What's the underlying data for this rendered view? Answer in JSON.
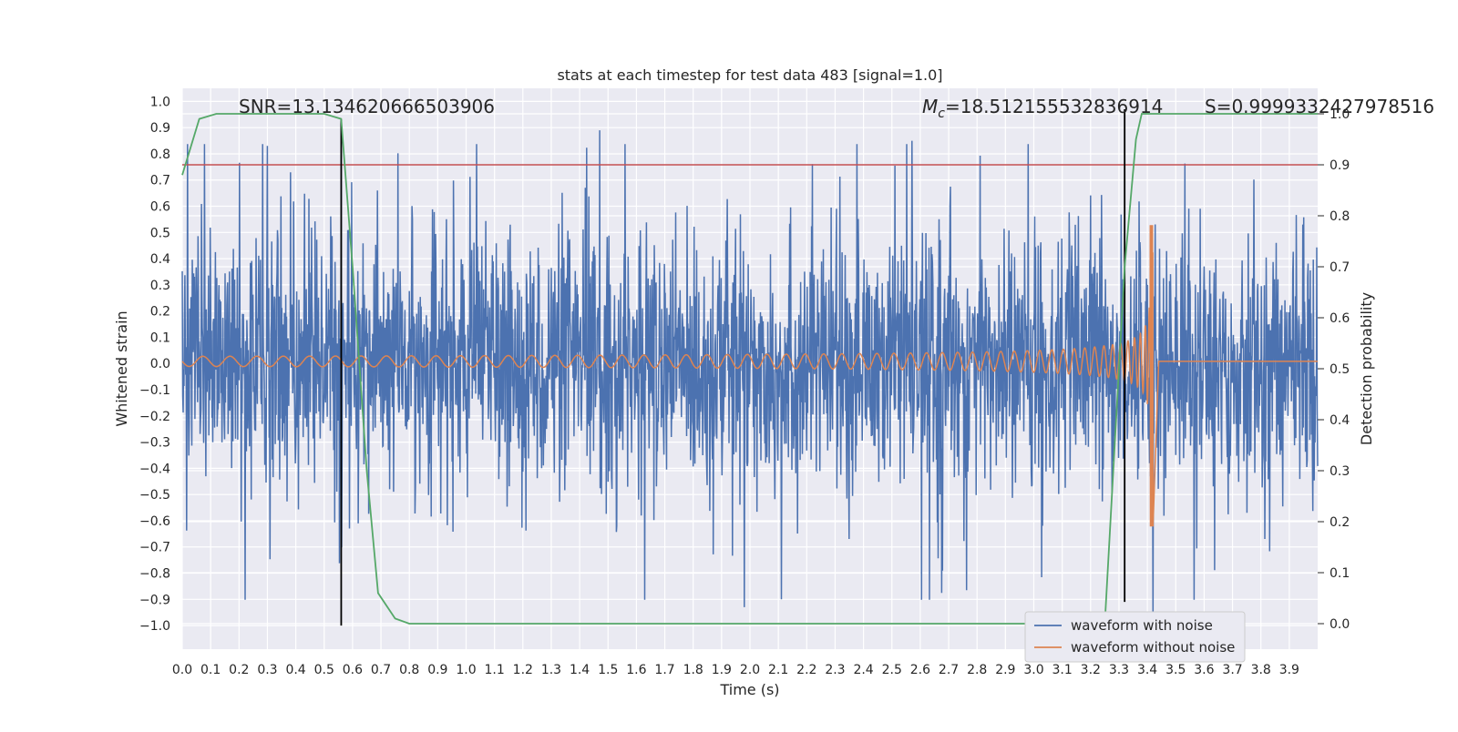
{
  "chart_data": {
    "type": "line",
    "title": "stats at each timestep for test data 483 [signal=1.0]",
    "xlabel": "Time (s)",
    "ylabel": "Whitened strain",
    "y2label": "Detection probability",
    "xlim": [
      0.0,
      4.0
    ],
    "ylim": [
      -1.09,
      1.05
    ],
    "y2lim": [
      -0.05,
      1.05
    ],
    "x_ticks": [
      "0.0",
      "0.1",
      "0.2",
      "0.3",
      "0.4",
      "0.5",
      "0.6",
      "0.7",
      "0.8",
      "0.9",
      "1.0",
      "1.1",
      "1.2",
      "1.3",
      "1.4",
      "1.5",
      "1.6",
      "1.7",
      "1.8",
      "1.9",
      "2.0",
      "2.1",
      "2.2",
      "2.3",
      "2.4",
      "2.5",
      "2.6",
      "2.7",
      "2.8",
      "2.9",
      "3.0",
      "3.1",
      "3.2",
      "3.3",
      "3.4",
      "3.5",
      "3.6",
      "3.7",
      "3.8",
      "3.9"
    ],
    "y_ticks": [
      "1.0",
      "0.9",
      "0.8",
      "0.7",
      "0.6",
      "0.5",
      "0.4",
      "0.3",
      "0.2",
      "0.1",
      "0.0",
      "−0.1",
      "−0.2",
      "−0.3",
      "−0.4",
      "−0.5",
      "−0.6",
      "−0.7",
      "−0.8",
      "−0.9",
      "−1.0"
    ],
    "y2_ticks": [
      "1.0",
      "0.9",
      "0.8",
      "0.7",
      "0.6",
      "0.5",
      "0.4",
      "0.3",
      "0.2",
      "0.1",
      "0.0"
    ],
    "grid": true,
    "legend_position": "lower-right",
    "annotations": {
      "snr": "SNR=13.134620666503906",
      "mc_symbol": "M",
      "mc_sub": "c",
      "mc_value": "=18.512155532836914",
      "s": "S=0.9999332427978516"
    },
    "series": [
      {
        "name": "waveform with noise",
        "color": "#4c72b0",
        "kind": "noise",
        "amplitude_range": [
          -0.98,
          0.93
        ],
        "note_peaks": [
          [
            0.3,
            0.83
          ],
          [
            0.56,
            0.93
          ],
          [
            1.47,
            0.89
          ],
          [
            2.57,
            0.85
          ],
          [
            1.98,
            -0.93
          ],
          [
            2.11,
            -0.9
          ],
          [
            3.42,
            -0.98
          ]
        ]
      },
      {
        "name": "waveform without noise",
        "color": "#dd8452",
        "kind": "chirp",
        "merger_time": 3.42,
        "peak_strain": 0.52,
        "min_strain": -0.63,
        "ringdown_end": 3.44
      },
      {
        "color": "#55a868",
        "axis": "right",
        "x": [
          0.0,
          0.06,
          0.12,
          0.2,
          0.3,
          0.5,
          0.56,
          0.6,
          0.65,
          0.69,
          0.75,
          0.8,
          0.9,
          3.25,
          3.28,
          3.32,
          3.36,
          3.38,
          3.42,
          3.5,
          4.0
        ],
        "y": [
          0.88,
          0.99,
          1.0,
          1.0,
          1.0,
          1.0,
          0.99,
          0.7,
          0.3,
          0.06,
          0.01,
          0.0,
          0.0,
          0.0,
          0.3,
          0.7,
          0.95,
          1.0,
          1.0,
          1.0,
          1.0
        ]
      },
      {
        "color": "#c44e52",
        "axis": "right",
        "kind": "threshold",
        "y": 0.9
      }
    ],
    "vlines": [
      {
        "x": 0.56,
        "ymin": -1.0,
        "ymax": 0.93,
        "color": "#000000"
      },
      {
        "x": 3.32,
        "ymin": -0.91,
        "ymax": 0.97,
        "color": "#000000"
      }
    ]
  }
}
